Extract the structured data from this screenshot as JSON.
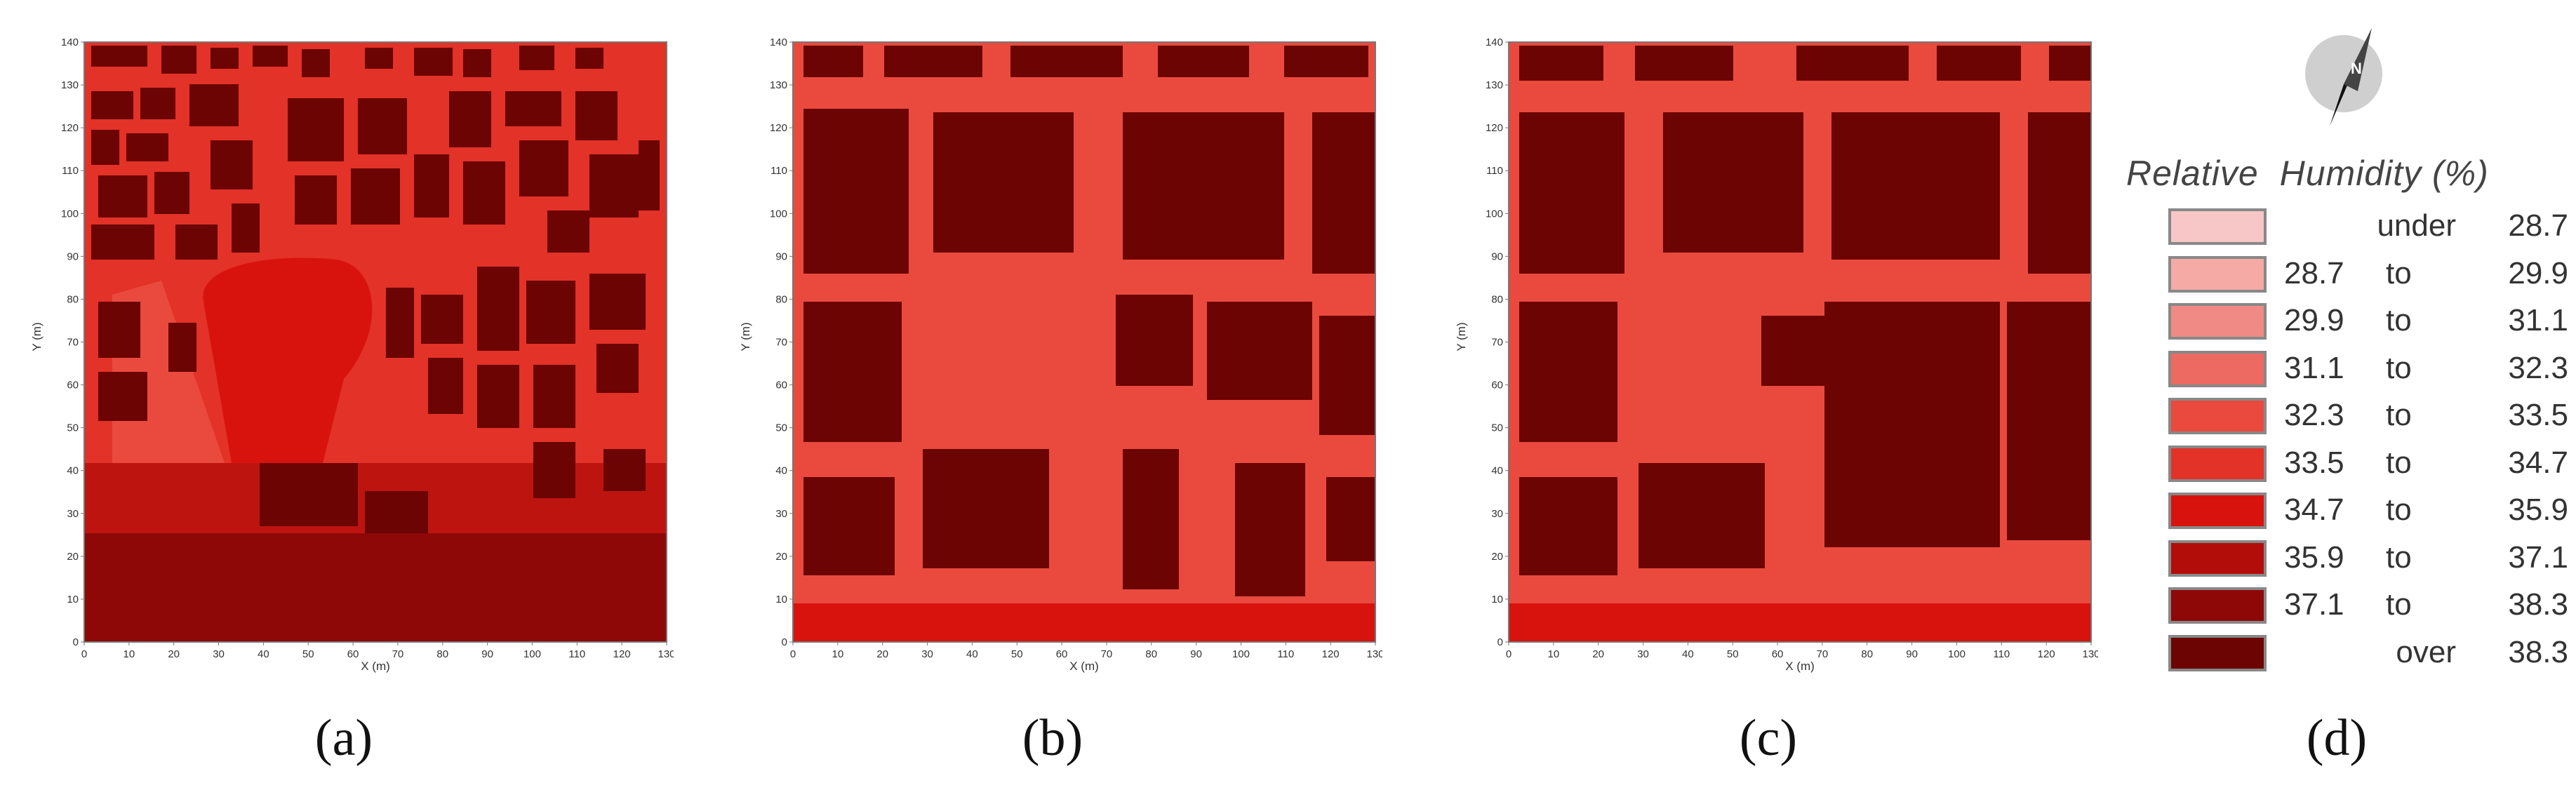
{
  "chart_data": [
    {
      "type": "heatmap",
      "panel": "(a)",
      "xlabel": "X (m)",
      "ylabel": "Y (m)",
      "xlim": [
        0,
        130
      ],
      "ylim": [
        0,
        140
      ],
      "xticks": [
        0,
        10,
        20,
        30,
        40,
        50,
        60,
        70,
        80,
        90,
        100,
        110,
        120,
        130
      ],
      "yticks": [
        0,
        10,
        20,
        30,
        40,
        50,
        60,
        70,
        80,
        90,
        100,
        110,
        120,
        130,
        140
      ]
    },
    {
      "type": "heatmap",
      "panel": "(b)",
      "xlabel": "X (m)",
      "ylabel": "Y (m)",
      "xlim": [
        0,
        130
      ],
      "ylim": [
        0,
        140
      ],
      "xticks": [
        0,
        10,
        20,
        30,
        40,
        50,
        60,
        70,
        80,
        90,
        100,
        110,
        120,
        130
      ],
      "yticks": [
        0,
        10,
        20,
        30,
        40,
        50,
        60,
        70,
        80,
        90,
        100,
        110,
        120,
        130,
        140
      ]
    },
    {
      "type": "heatmap",
      "panel": "(c)",
      "xlabel": "X (m)",
      "ylabel": "Y (m)",
      "xlim": [
        0,
        130
      ],
      "ylim": [
        0,
        140
      ],
      "xticks": [
        0,
        10,
        20,
        30,
        40,
        50,
        60,
        70,
        80,
        90,
        100,
        110,
        120,
        130
      ],
      "yticks": [
        0,
        10,
        20,
        30,
        40,
        50,
        60,
        70,
        80,
        90,
        100,
        110,
        120,
        130,
        140
      ]
    }
  ],
  "captions": [
    "(a)",
    "(b)",
    "(c)",
    "(d)"
  ],
  "legend": {
    "title_word1": "Relative",
    "title_word2": "Humidity (%)",
    "compass_letter": "N",
    "rows": [
      {
        "lo": "",
        "to": "under",
        "hi": "28.7",
        "color": "#f7c6c6"
      },
      {
        "lo": "28.7",
        "to": "to",
        "hi": "29.9",
        "color": "#f5aaa6"
      },
      {
        "lo": "29.9",
        "to": "to",
        "hi": "31.1",
        "color": "#f08a84"
      },
      {
        "lo": "31.1",
        "to": "to",
        "hi": "32.3",
        "color": "#ec6a62"
      },
      {
        "lo": "32.3",
        "to": "to",
        "hi": "33.5",
        "color": "#ea4a3e"
      },
      {
        "lo": "33.5",
        "to": "to",
        "hi": "34.7",
        "color": "#e33227"
      },
      {
        "lo": "34.7",
        "to": "to",
        "hi": "35.9",
        "color": "#d8130d"
      },
      {
        "lo": "35.9",
        "to": "to",
        "hi": "37.1",
        "color": "#b30d0a"
      },
      {
        "lo": "37.1",
        "to": "to",
        "hi": "38.3",
        "color": "#8d0807"
      },
      {
        "lo": "",
        "to": "over",
        "hi": "38.3",
        "color": "#6b0403"
      }
    ]
  }
}
